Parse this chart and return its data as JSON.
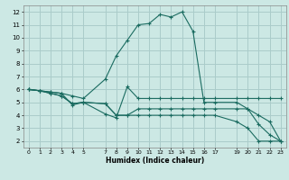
{
  "title": "",
  "xlabel": "Humidex (Indice chaleur)",
  "xlim": [
    -0.5,
    23.5
  ],
  "ylim": [
    1.5,
    12.5
  ],
  "xticks": [
    0,
    1,
    2,
    3,
    4,
    5,
    7,
    8,
    9,
    10,
    11,
    12,
    13,
    14,
    15,
    16,
    17,
    19,
    20,
    21,
    22,
    23
  ],
  "yticks": [
    2,
    3,
    4,
    5,
    6,
    7,
    8,
    9,
    10,
    11,
    12
  ],
  "bg_color": "#cce8e4",
  "grid_color": "#aaccca",
  "line_color": "#1a6b60",
  "lines": [
    {
      "x": [
        0,
        1,
        2,
        3,
        4,
        5,
        7,
        8,
        9,
        10,
        11,
        12,
        13,
        14,
        15,
        16,
        17,
        19,
        20,
        21,
        22,
        23
      ],
      "y": [
        6,
        5.9,
        5.8,
        5.7,
        5.5,
        5.3,
        6.8,
        8.6,
        9.8,
        11.0,
        11.1,
        11.8,
        11.6,
        12.0,
        10.5,
        5.0,
        5.0,
        5.0,
        4.5,
        3.3,
        2.5,
        2.0
      ]
    },
    {
      "x": [
        0,
        1,
        2,
        3,
        4,
        5,
        7,
        8,
        9,
        10,
        11,
        12,
        13,
        14,
        15,
        16,
        17,
        19,
        20,
        21,
        22,
        23
      ],
      "y": [
        6,
        5.9,
        5.8,
        5.7,
        4.8,
        5.0,
        4.1,
        3.8,
        6.2,
        5.3,
        5.3,
        5.3,
        5.3,
        5.3,
        5.3,
        5.3,
        5.3,
        5.3,
        5.3,
        5.3,
        5.3,
        5.3
      ]
    },
    {
      "x": [
        0,
        1,
        2,
        3,
        4,
        5,
        7,
        8,
        9,
        10,
        11,
        12,
        13,
        14,
        15,
        16,
        17,
        19,
        20,
        21,
        22,
        23
      ],
      "y": [
        6,
        5.9,
        5.7,
        5.5,
        4.9,
        5.0,
        4.9,
        4.0,
        4.0,
        4.5,
        4.5,
        4.5,
        4.5,
        4.5,
        4.5,
        4.5,
        4.5,
        4.5,
        4.5,
        4.0,
        3.5,
        2.0
      ]
    },
    {
      "x": [
        0,
        1,
        2,
        3,
        4,
        5,
        7,
        8,
        9,
        10,
        11,
        12,
        13,
        14,
        15,
        16,
        17,
        19,
        20,
        21,
        22,
        23
      ],
      "y": [
        6,
        5.9,
        5.7,
        5.5,
        4.9,
        5.0,
        4.9,
        4.0,
        4.0,
        4.0,
        4.0,
        4.0,
        4.0,
        4.0,
        4.0,
        4.0,
        4.0,
        3.5,
        3.0,
        2.0,
        2.0,
        2.0
      ]
    }
  ]
}
